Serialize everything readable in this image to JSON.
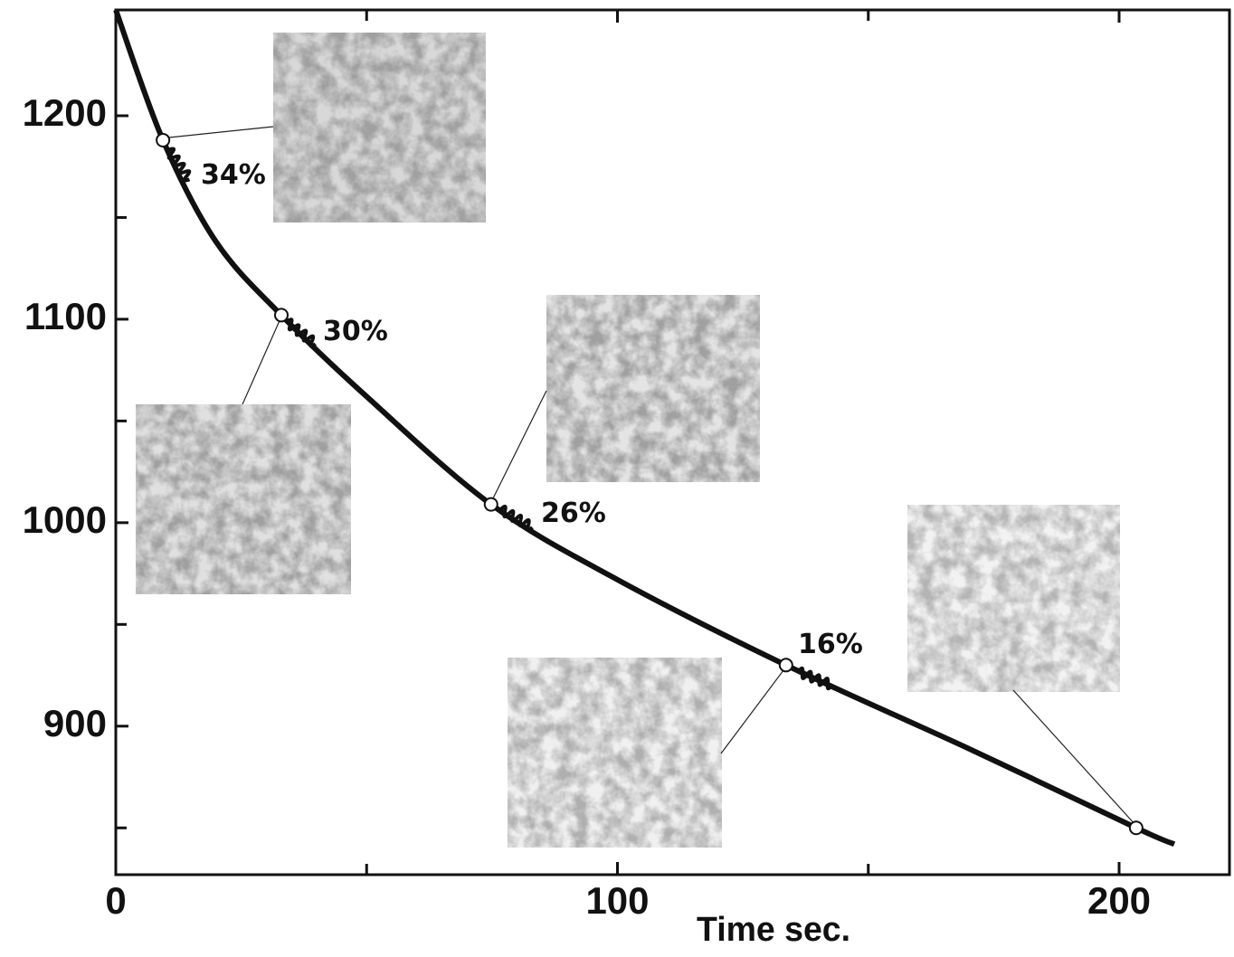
{
  "chart_data": {
    "type": "line",
    "x_label": "Time sec.",
    "x": [
      0,
      9.4,
      20,
      33,
      50,
      74.8,
      100,
      133.6,
      170,
      203.4,
      211
    ],
    "series": [
      {
        "color": "#111111",
        "values": [
          1252,
          1188,
          1138,
          1102,
          1062,
          1009,
          972,
          930,
          889,
          850,
          842
        ]
      }
    ],
    "sample_points": {
      "x": [
        9.4,
        33,
        74.8,
        133.6,
        203.4
      ],
      "values": [
        1188,
        1102,
        1009,
        930,
        850
      ]
    },
    "point_labels": [
      "34%",
      "30%",
      "26%",
      "16%"
    ],
    "xlim": [
      0,
      222
    ],
    "xticks": [
      0,
      100,
      200
    ],
    "xminor_ticks": [
      50,
      150
    ],
    "ylim": [
      827,
      1252
    ],
    "yticks": [
      900,
      1000,
      1100,
      1200
    ],
    "yminor_ticks": [
      850,
      950,
      1050,
      1150
    ]
  }
}
